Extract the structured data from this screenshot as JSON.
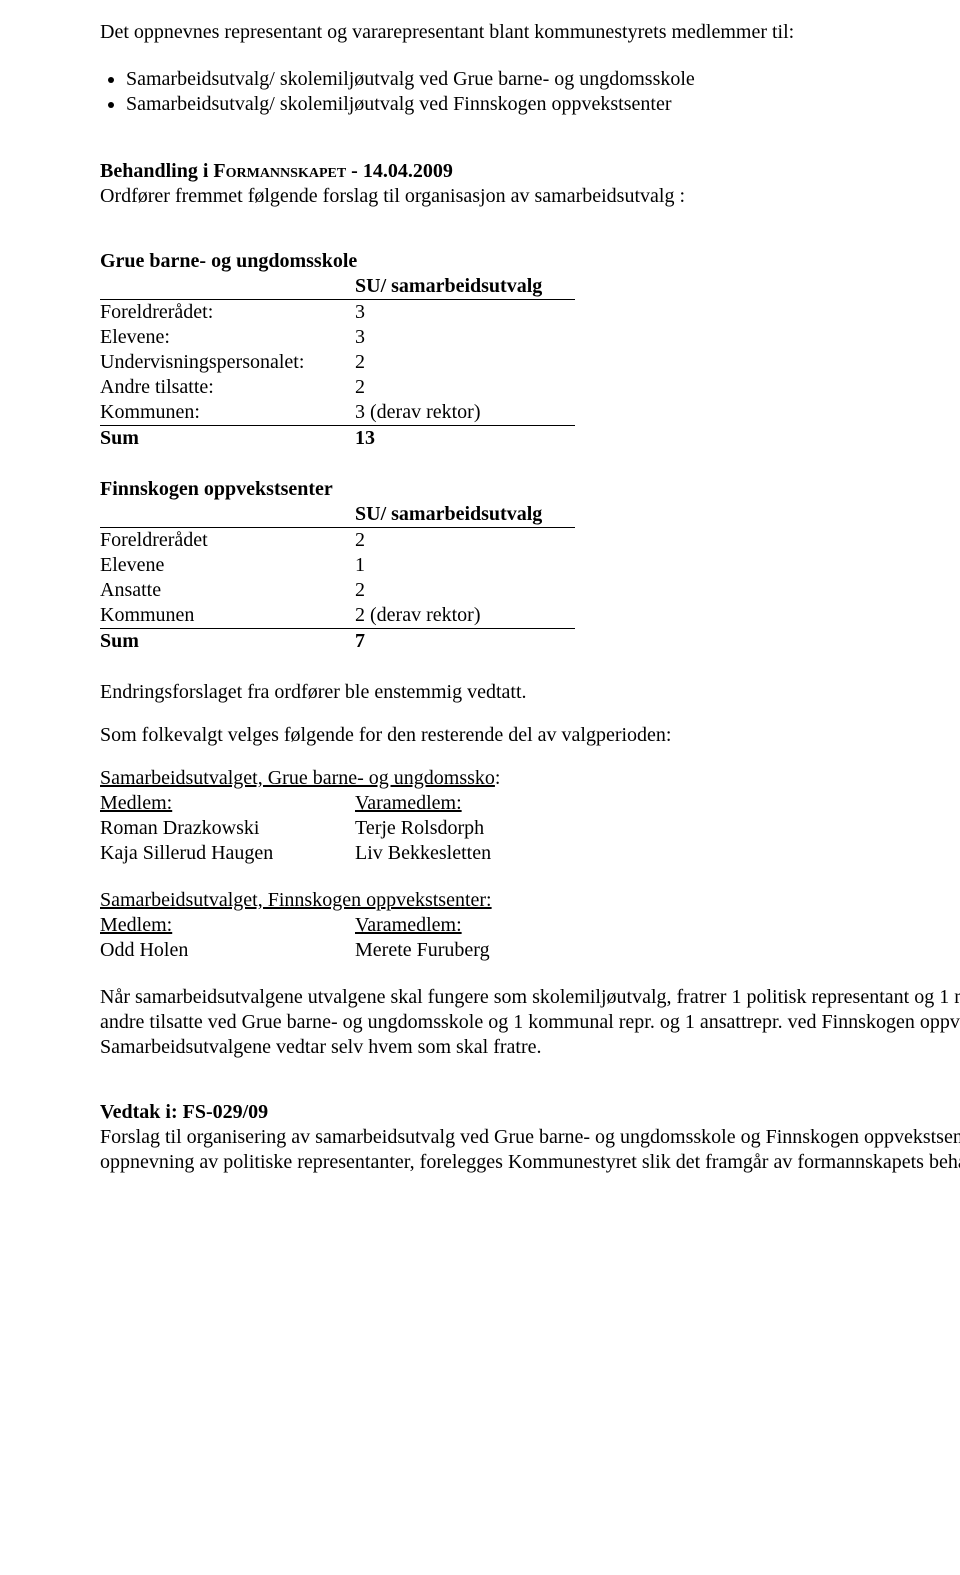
{
  "intro": {
    "p1": "Det oppnevnes  representant og vararepresentant blant kommunestyrets medlemmer til:",
    "bullets": [
      "Samarbeidsutvalg/ skolemiljøutvalg ved Grue barne- og ungdomsskole",
      "Samarbeidsutvalg/ skolemiljøutvalg ved Finnskogen oppvekstsenter"
    ]
  },
  "behandling": {
    "label_prefix": "Behandling i F",
    "label_sc": "ormannskapet",
    "label_suffix": " - 14.04.2009",
    "line2": "Ordfører fremmet følgende forslag til organisasjon av samarbeidsutvalg :"
  },
  "grue": {
    "title": "Grue barne- og ungdomsskole",
    "su_header": "SU/ samarbeidsutvalg",
    "rows": [
      {
        "label": "Foreldrerådet:",
        "value": "3"
      },
      {
        "label": "Elevene:",
        "value": "3"
      },
      {
        "label": "Undervisningspersonalet:",
        "value": "2"
      },
      {
        "label": "Andre tilsatte:",
        "value": "2"
      },
      {
        "label": "Kommunen:",
        "value": "3 (derav rektor)"
      }
    ],
    "sum_label": "Sum",
    "sum_value": "13"
  },
  "finnskogen": {
    "title": "Finnskogen oppvekstsenter",
    "su_header": "SU/ samarbeidsutvalg",
    "rows": [
      {
        "label": "Foreldrerådet",
        "value": "2"
      },
      {
        "label": "Elevene",
        "value": "1"
      },
      {
        "label": "Ansatte",
        "value": "2"
      },
      {
        "label": "Kommunen",
        "value": "2 (derav rektor)"
      }
    ],
    "sum_label": "Sum",
    "sum_value": "7"
  },
  "endring": "Endringsforslaget fra ordfører ble enstemmig vedtatt.",
  "folkevalgt": "Som folkevalgt velges følgende for den resterende del av valgperioden:",
  "samarb_grue": {
    "title": " Samarbeidsutvalget, Grue barne- og ungdomssko",
    "colon": ":",
    "medlem": "Medlem:",
    "varamedlem": "Varamedlem:",
    "rows": [
      {
        "m": "Roman Drazkowski",
        "v": "Terje Rolsdorph"
      },
      {
        "m": "Kaja Sillerud Haugen",
        "v": "Liv Bekkesletten"
      }
    ]
  },
  "samarb_finn": {
    "title": "Samarbeidsutvalget, Finnskogen oppvekstsenter:",
    "medlem": "Medlem:",
    "varamedlem": "Varamedlem:",
    "rows": [
      {
        "m": "Odd Holen",
        "v": "Merete Furuberg"
      }
    ]
  },
  "closing": {
    "p1": "Når samarbeidsutvalgene utvalgene skal fungere som skolemiljøutvalg, fratrer 1 politisk representant og 1 repr. fra andre tilsatte ved Grue barne- og ungdomsskole og 1 kommunal repr. og  1 ansattrepr. ved Finnskogen oppvekstsenter.",
    "p2": "Samarbeidsutvalgene vedtar selv hvem som skal fratre."
  },
  "vedtak": {
    "title": "Vedtak i: FS-029/09",
    "body": "Forslag til organisering av samarbeidsutvalg ved Grue barne- og ungdomsskole og Finnskogen oppvekstsenter med oppnevning av politiske representanter, forelegges Kommunestyret slik det framgår av formannskapets behandling."
  }
}
